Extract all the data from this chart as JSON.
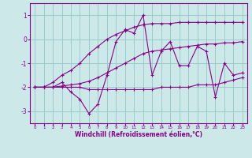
{
  "xlabel": "Windchill (Refroidissement éolien,°C)",
  "background_color": "#cce8e8",
  "line_color": "#880088",
  "grid_color": "#99cccc",
  "x": [
    0,
    1,
    2,
    3,
    4,
    5,
    6,
    7,
    8,
    9,
    10,
    11,
    12,
    13,
    14,
    15,
    16,
    17,
    18,
    19,
    20,
    21,
    22,
    23
  ],
  "y_main": [
    -2.0,
    -2.0,
    -2.0,
    -1.8,
    -2.2,
    -2.5,
    -3.1,
    -2.7,
    -1.5,
    -0.1,
    0.4,
    0.25,
    1.0,
    -1.5,
    -0.5,
    -0.1,
    -1.1,
    -1.1,
    -0.3,
    -0.5,
    -2.4,
    -1.0,
    -1.5,
    -1.4
  ],
  "y_upper": [
    -2.0,
    -2.0,
    -1.8,
    -1.5,
    -1.3,
    -1.0,
    -0.6,
    -0.3,
    0.0,
    0.2,
    0.35,
    0.5,
    0.6,
    0.65,
    0.65,
    0.65,
    0.7,
    0.7,
    0.7,
    0.7,
    0.7,
    0.7,
    0.7,
    0.7
  ],
  "y_lower": [
    -2.0,
    -2.0,
    -2.0,
    -2.0,
    -2.0,
    -2.0,
    -2.1,
    -2.1,
    -2.1,
    -2.1,
    -2.1,
    -2.1,
    -2.1,
    -2.1,
    -2.0,
    -2.0,
    -2.0,
    -2.0,
    -1.9,
    -1.9,
    -1.9,
    -1.8,
    -1.7,
    -1.6
  ],
  "y_mid": [
    -2.0,
    -2.0,
    -2.0,
    -1.95,
    -1.9,
    -1.85,
    -1.75,
    -1.6,
    -1.4,
    -1.2,
    -1.0,
    -0.8,
    -0.6,
    -0.5,
    -0.45,
    -0.4,
    -0.35,
    -0.3,
    -0.25,
    -0.2,
    -0.2,
    -0.15,
    -0.15,
    -0.1
  ],
  "ylim": [
    -3.5,
    1.5
  ],
  "xlim": [
    -0.5,
    23.5
  ],
  "yticks": [
    -3,
    -2,
    -1,
    0,
    1
  ],
  "xticks": [
    0,
    1,
    2,
    3,
    4,
    5,
    6,
    7,
    8,
    9,
    10,
    11,
    12,
    13,
    14,
    15,
    16,
    17,
    18,
    19,
    20,
    21,
    22,
    23
  ]
}
